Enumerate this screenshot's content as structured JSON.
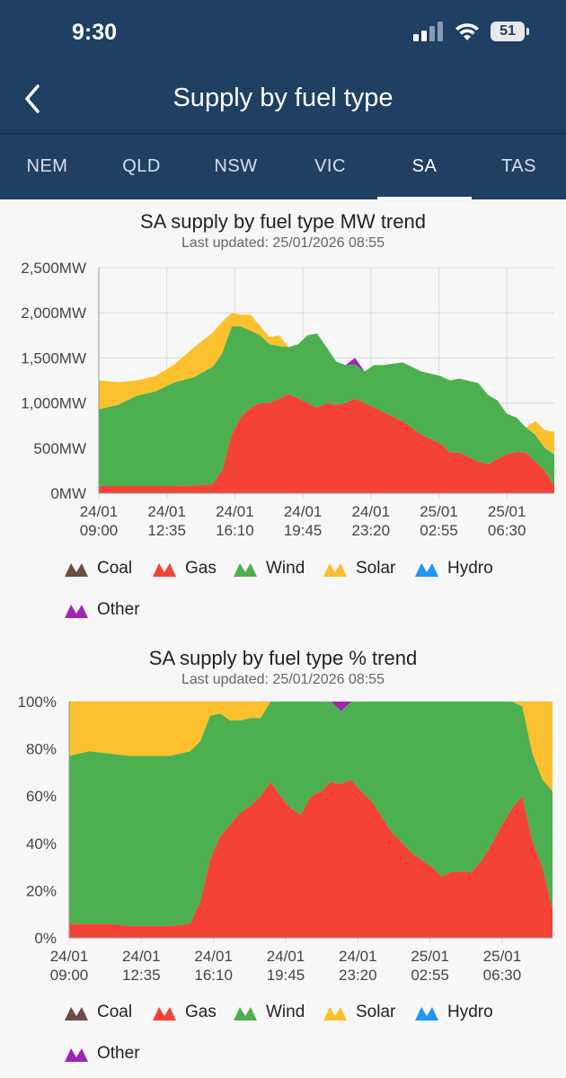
{
  "status": {
    "time": "9:30",
    "battery": "51"
  },
  "header": {
    "title": "Supply by fuel type"
  },
  "tabs": [
    {
      "label": "NEM",
      "active": false
    },
    {
      "label": "QLD",
      "active": false
    },
    {
      "label": "NSW",
      "active": false
    },
    {
      "label": "VIC",
      "active": false
    },
    {
      "label": "SA",
      "active": true
    },
    {
      "label": "TAS",
      "active": false
    }
  ],
  "colors": {
    "coal": "#6d4c41",
    "gas": "#f44336",
    "wind": "#4caf50",
    "solar": "#fbc02d",
    "hydro": "#2196f3",
    "other": "#9c27b0",
    "header": "#1f3f63",
    "grid": "#d9d9d9"
  },
  "legend": [
    {
      "key": "coal",
      "label": "Coal"
    },
    {
      "key": "gas",
      "label": "Gas"
    },
    {
      "key": "wind",
      "label": "Wind"
    },
    {
      "key": "solar",
      "label": "Solar"
    },
    {
      "key": "hydro",
      "label": "Hydro"
    },
    {
      "key": "other",
      "label": "Other"
    }
  ],
  "chart_data": [
    {
      "type": "area",
      "stacked": true,
      "title": "SA supply by fuel type MW trend",
      "subtitle": "Last updated: 25/01/2026 08:55",
      "unit": "MW",
      "ylim": [
        0,
        2500
      ],
      "yticks": [
        {
          "v": 0,
          "label": "0MW"
        },
        {
          "v": 500,
          "label": "500MW"
        },
        {
          "v": 1000,
          "label": "1,000MW"
        },
        {
          "v": 1500,
          "label": "1,500MW"
        },
        {
          "v": 2000,
          "label": "2,000MW"
        },
        {
          "v": 2500,
          "label": "2,500MW"
        }
      ],
      "xtick_labels": [
        [
          "24/01",
          "09:00"
        ],
        [
          "24/01",
          "12:35"
        ],
        [
          "24/01",
          "16:10"
        ],
        [
          "24/01",
          "19:45"
        ],
        [
          "24/01",
          "23:20"
        ],
        [
          "25/01",
          "02:55"
        ],
        [
          "25/01",
          "06:30"
        ]
      ],
      "xtick_hours": [
        0,
        3.5833,
        7.1667,
        10.75,
        14.3333,
        17.9167,
        21.5
      ],
      "x_hours": [
        0,
        1,
        2,
        3,
        4,
        5,
        6,
        6.5,
        7,
        7.5,
        8,
        8.5,
        9,
        9.5,
        10,
        10.5,
        11,
        11.5,
        12,
        12.5,
        13,
        13.5,
        14,
        14.5,
        15,
        16,
        17,
        18,
        18.5,
        19,
        20,
        20.5,
        21,
        21.5,
        22,
        22.5,
        23,
        23.5,
        24
      ],
      "series": [
        {
          "name": "Coal",
          "key": "coal",
          "values": [
            0,
            0,
            0,
            0,
            0,
            0,
            0,
            0,
            0,
            0,
            0,
            0,
            0,
            0,
            0,
            0,
            0,
            0,
            0,
            0,
            0,
            0,
            0,
            0,
            0,
            0,
            0,
            0,
            0,
            0,
            0,
            0,
            0,
            0,
            0,
            0,
            0,
            0,
            0
          ]
        },
        {
          "name": "Gas",
          "key": "gas",
          "values": [
            80,
            80,
            80,
            80,
            80,
            85,
            100,
            250,
            650,
            850,
            950,
            1000,
            1000,
            1050,
            1100,
            1050,
            1000,
            950,
            1000,
            980,
            1000,
            1050,
            1000,
            950,
            900,
            800,
            650,
            550,
            450,
            450,
            350,
            320,
            380,
            430,
            460,
            450,
            350,
            250,
            80
          ]
        },
        {
          "name": "Wind",
          "key": "wind",
          "values": [
            850,
            900,
            1000,
            1050,
            1150,
            1200,
            1300,
            1300,
            1200,
            1000,
            850,
            750,
            650,
            580,
            520,
            600,
            750,
            820,
            620,
            480,
            420,
            380,
            350,
            470,
            520,
            650,
            700,
            750,
            800,
            820,
            870,
            770,
            650,
            450,
            380,
            280,
            300,
            250,
            350
          ]
        },
        {
          "name": "Solar",
          "key": "solar",
          "values": [
            320,
            250,
            170,
            170,
            200,
            330,
            380,
            350,
            150,
            130,
            180,
            100,
            80,
            120,
            0,
            0,
            0,
            0,
            0,
            0,
            0,
            0,
            0,
            0,
            0,
            0,
            0,
            0,
            0,
            0,
            0,
            0,
            0,
            0,
            0,
            0,
            150,
            200,
            250
          ]
        },
        {
          "name": "Hydro",
          "key": "hydro",
          "values": [
            0,
            0,
            0,
            0,
            0,
            0,
            0,
            0,
            0,
            0,
            0,
            0,
            0,
            0,
            0,
            0,
            0,
            0,
            0,
            0,
            0,
            0,
            0,
            0,
            0,
            0,
            0,
            0,
            0,
            0,
            0,
            0,
            0,
            0,
            0,
            0,
            0,
            0,
            0
          ]
        },
        {
          "name": "Other",
          "key": "other",
          "values": [
            0,
            0,
            0,
            0,
            0,
            0,
            0,
            0,
            0,
            0,
            0,
            0,
            0,
            0,
            0,
            0,
            0,
            0,
            0,
            0,
            0,
            70,
            0,
            0,
            0,
            0,
            0,
            0,
            0,
            0,
            0,
            0,
            0,
            0,
            0,
            0,
            0,
            0,
            0
          ]
        }
      ]
    },
    {
      "type": "area",
      "stacked": true,
      "title": "SA supply by fuel type % trend",
      "subtitle": "Last updated: 25/01/2026 08:55",
      "unit": "%",
      "ylim": [
        0,
        100
      ],
      "yticks": [
        {
          "v": 0,
          "label": "0%"
        },
        {
          "v": 20,
          "label": "20%"
        },
        {
          "v": 40,
          "label": "40%"
        },
        {
          "v": 60,
          "label": "60%"
        },
        {
          "v": 80,
          "label": "80%"
        },
        {
          "v": 100,
          "label": "100%"
        }
      ],
      "xtick_labels": [
        [
          "24/01",
          "09:00"
        ],
        [
          "24/01",
          "12:35"
        ],
        [
          "24/01",
          "16:10"
        ],
        [
          "24/01",
          "19:45"
        ],
        [
          "24/01",
          "23:20"
        ],
        [
          "25/01",
          "02:55"
        ],
        [
          "25/01",
          "06:30"
        ]
      ],
      "xtick_hours": [
        0,
        3.5833,
        7.1667,
        10.75,
        14.3333,
        17.9167,
        21.5
      ],
      "x_hours": [
        0,
        1,
        2,
        3,
        4,
        5,
        6,
        6.5,
        7,
        7.5,
        8,
        8.5,
        9,
        9.5,
        10,
        10.5,
        11,
        11.5,
        12,
        12.5,
        13,
        13.5,
        14,
        14.5,
        15,
        16,
        17,
        18,
        18.5,
        19,
        20,
        20.5,
        21,
        21.5,
        22,
        22.5,
        23,
        23.5,
        24
      ],
      "series": [
        {
          "name": "Coal",
          "key": "coal",
          "values": [
            0,
            0,
            0,
            0,
            0,
            0,
            0,
            0,
            0,
            0,
            0,
            0,
            0,
            0,
            0,
            0,
            0,
            0,
            0,
            0,
            0,
            0,
            0,
            0,
            0,
            0,
            0,
            0,
            0,
            0,
            0,
            0,
            0,
            0,
            0,
            0,
            0,
            0,
            0
          ]
        },
        {
          "name": "Gas",
          "key": "gas",
          "values": [
            6,
            6,
            6,
            5,
            5,
            5,
            6,
            15,
            33,
            43,
            48,
            53,
            56,
            60,
            66,
            60,
            55,
            52,
            60,
            62,
            66,
            65,
            67,
            62,
            58,
            45,
            36,
            30,
            26,
            28,
            28,
            33,
            40,
            48,
            55,
            60,
            41,
            30,
            12
          ]
        },
        {
          "name": "Wind",
          "key": "wind",
          "values": [
            71,
            73,
            72,
            72,
            72,
            72,
            73,
            68,
            61,
            52,
            44,
            39,
            37,
            33,
            34,
            40,
            45,
            48,
            40,
            38,
            34,
            31,
            33,
            38,
            42,
            55,
            64,
            70,
            74,
            72,
            72,
            67,
            60,
            52,
            45,
            38,
            37,
            37,
            50
          ]
        },
        {
          "name": "Solar",
          "key": "solar",
          "values": [
            23,
            21,
            22,
            23,
            23,
            23,
            21,
            17,
            6,
            5,
            8,
            8,
            7,
            7,
            0,
            0,
            0,
            0,
            0,
            0,
            0,
            0,
            0,
            0,
            0,
            0,
            0,
            0,
            0,
            0,
            0,
            0,
            0,
            0,
            0,
            2,
            22,
            33,
            38
          ]
        },
        {
          "name": "Hydro",
          "key": "hydro",
          "values": [
            0,
            0,
            0,
            0,
            0,
            0,
            0,
            0,
            0,
            0,
            0,
            0,
            0,
            0,
            0,
            0,
            0,
            0,
            0,
            0,
            0,
            0,
            0,
            0,
            0,
            0,
            0,
            0,
            0,
            0,
            0,
            0,
            0,
            0,
            0,
            0,
            0,
            0,
            0
          ]
        },
        {
          "name": "Other",
          "key": "other",
          "values": [
            0,
            0,
            0,
            0,
            0,
            0,
            0,
            0,
            0,
            0,
            0,
            0,
            0,
            0,
            0,
            0,
            0,
            0,
            0,
            0,
            0,
            4,
            0,
            0,
            0,
            0,
            0,
            0,
            0,
            0,
            0,
            0,
            0,
            0,
            0,
            0,
            0,
            0,
            0
          ]
        }
      ]
    }
  ]
}
